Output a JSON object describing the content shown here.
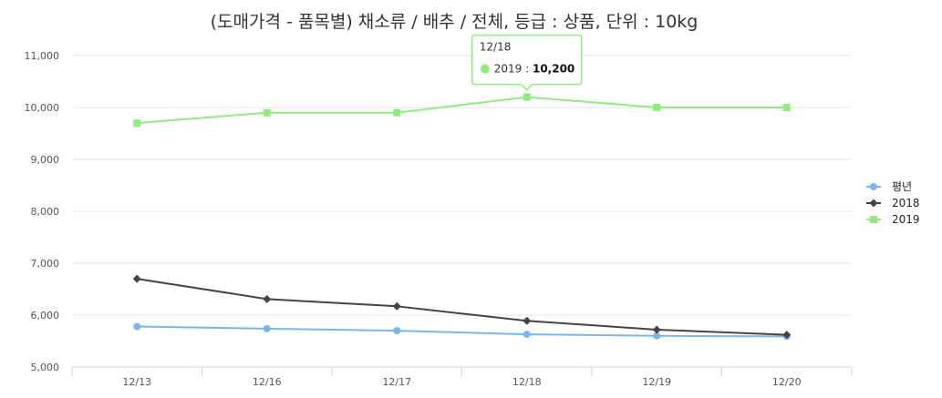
{
  "chart_data": {
    "type": "line",
    "title": "(도매가격 - 품목별) 채소류 / 배추 / 전체, 등급 : 상품, 단위 : 10kg",
    "xlabel": "",
    "ylabel": "",
    "categories": [
      "12/13",
      "12/16",
      "12/17",
      "12/18",
      "12/19",
      "12/20"
    ],
    "ylim": [
      5000,
      11000
    ],
    "yticks": [
      "5,000",
      "6,000",
      "7,000",
      "8,000",
      "9,000",
      "10,000",
      "11,000"
    ],
    "grid": true,
    "legend_position": "right",
    "series": [
      {
        "name": "평년",
        "color": "#7cb5ec",
        "marker": "circle",
        "values": [
          5780,
          5740,
          5700,
          5630,
          5600,
          5590
        ]
      },
      {
        "name": "2018",
        "color": "#434348",
        "marker": "diamond",
        "values": [
          6700,
          6310,
          6170,
          5890,
          5720,
          5620
        ]
      },
      {
        "name": "2019",
        "color": "#90ed7d",
        "marker": "square",
        "values": [
          9700,
          9900,
          9900,
          10200,
          10000,
          10000
        ]
      }
    ],
    "tooltip": {
      "date": "12/18",
      "series_label": "2019 : ",
      "value_label": "10,200",
      "series_index": 2,
      "point_index": 3
    }
  }
}
